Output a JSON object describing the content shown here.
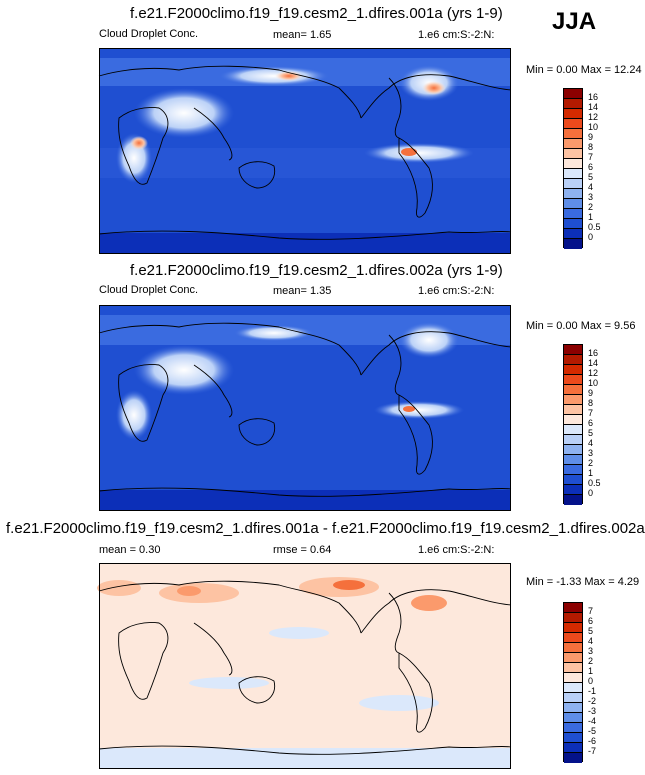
{
  "season": "JJA",
  "panels": [
    {
      "title": "f.e21.F2000climo.f19_f19.cesm2_1.dfires.001a (yrs 1-9)",
      "left_label": "Cloud Droplet Conc.",
      "mean_text": "mean=   1.65",
      "right_label": "1.e6 cm:S:-2:N:",
      "minmax": "Min =   0.00 Max =  12.24",
      "colorbar": {
        "labels": [
          "16",
          "14",
          "12",
          "10",
          "9",
          "8",
          "7",
          "6",
          "5",
          "4",
          "3",
          "2",
          "1",
          "0.5",
          "0"
        ],
        "colors": [
          "#8b0000",
          "#b31a00",
          "#d42a00",
          "#ec4a1c",
          "#f5703c",
          "#fb9a6c",
          "#fdc3a3",
          "#fde8dc",
          "#dbe8fb",
          "#b9d0f7",
          "#8eb2f0",
          "#5f8ee8",
          "#3a6be0",
          "#1f4fd1",
          "#0c2fb8",
          "#04128a"
        ]
      },
      "chart_data": {
        "type": "heatmap",
        "title": "f.e21.F2000climo.f19_f19.cesm2_1.dfires.001a (yrs 1-9)",
        "variable": "Cloud Droplet Conc.",
        "units": "1.e6 cm:S:-2:N:",
        "mean": 1.65,
        "min": 0.0,
        "max": 12.24,
        "levels": [
          0,
          0.5,
          1,
          2,
          3,
          4,
          5,
          6,
          7,
          8,
          9,
          10,
          12,
          14,
          16
        ]
      }
    },
    {
      "title": "f.e21.F2000climo.f19_f19.cesm2_1.dfires.002a (yrs 1-9)",
      "left_label": "Cloud Droplet Conc.",
      "mean_text": "mean=   1.35",
      "right_label": "1.e6 cm:S:-2:N:",
      "minmax": "Min =   0.00 Max =   9.56",
      "colorbar": {
        "labels": [
          "16",
          "14",
          "12",
          "10",
          "9",
          "8",
          "7",
          "6",
          "5",
          "4",
          "3",
          "2",
          "1",
          "0.5",
          "0"
        ],
        "colors": [
          "#8b0000",
          "#b31a00",
          "#d42a00",
          "#ec4a1c",
          "#f5703c",
          "#fb9a6c",
          "#fdc3a3",
          "#fde8dc",
          "#dbe8fb",
          "#b9d0f7",
          "#8eb2f0",
          "#5f8ee8",
          "#3a6be0",
          "#1f4fd1",
          "#0c2fb8",
          "#04128a"
        ]
      },
      "chart_data": {
        "type": "heatmap",
        "title": "f.e21.F2000climo.f19_f19.cesm2_1.dfires.002a (yrs 1-9)",
        "variable": "Cloud Droplet Conc.",
        "units": "1.e6 cm:S:-2:N:",
        "mean": 1.35,
        "min": 0.0,
        "max": 9.56,
        "levels": [
          0,
          0.5,
          1,
          2,
          3,
          4,
          5,
          6,
          7,
          8,
          9,
          10,
          12,
          14,
          16
        ]
      }
    },
    {
      "title": "f.e21.F2000climo.f19_f19.cesm2_1.dfires.001a - f.e21.F2000climo.f19_f19.cesm2_1.dfires.002a",
      "mean_text": "mean =   0.30",
      "rmse_text": "rmse =   0.64",
      "right_label": "1.e6 cm:S:-2:N:",
      "minmax": "Min =  -1.33 Max =   4.29",
      "colorbar": {
        "labels": [
          "7",
          "6",
          "5",
          "4",
          "3",
          "2",
          "1",
          "0",
          "-1",
          "-2",
          "-3",
          "-4",
          "-5",
          "-6",
          "-7"
        ],
        "colors": [
          "#8b0000",
          "#b31a00",
          "#d42a00",
          "#ec4a1c",
          "#f5703c",
          "#fb9a6c",
          "#fdc3a3",
          "#fde8dc",
          "#dbe8fb",
          "#b9d0f7",
          "#8eb2f0",
          "#5f8ee8",
          "#3a6be0",
          "#1f4fd1",
          "#0c2fb8",
          "#04128a"
        ]
      },
      "chart_data": {
        "type": "heatmap",
        "title": "f.e21.F2000climo.f19_f19.cesm2_1.dfires.001a - f.e21.F2000climo.f19_f19.cesm2_1.dfires.002a",
        "units": "1.e6 cm:S:-2:N:",
        "mean": 0.3,
        "rmse": 0.64,
        "min": -1.33,
        "max": 4.29,
        "levels": [
          -7,
          -6,
          -5,
          -4,
          -3,
          -2,
          -1,
          0,
          1,
          2,
          3,
          4,
          5,
          6,
          7
        ]
      }
    }
  ]
}
